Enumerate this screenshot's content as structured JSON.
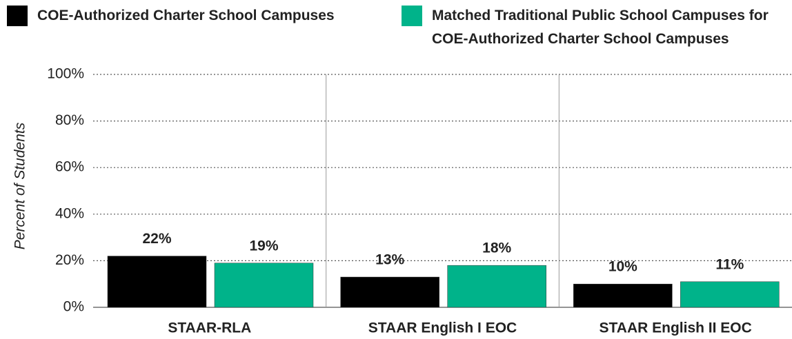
{
  "chart_data": {
    "type": "bar",
    "y_label": "Percent of Students",
    "categories": [
      "STAAR-RLA",
      "STAAR English I EOC",
      "STAAR English II EOC"
    ],
    "series": [
      {
        "name": "COE-Authorized Charter School Campuses",
        "color": "#000000",
        "values": [
          22,
          13,
          10
        ],
        "value_labels": [
          "22%",
          "13%",
          "10%"
        ]
      },
      {
        "name": "Matched Traditional Public School Campuses for COE-Authorized Charter School Campuses",
        "color": "#00b38a",
        "values": [
          19,
          18,
          11
        ],
        "value_labels": [
          "19%",
          "18%",
          "11%"
        ]
      }
    ],
    "ylim": [
      0,
      100
    ],
    "yticks": [
      {
        "value": 0,
        "label": "0%"
      },
      {
        "value": 20,
        "label": "20%"
      },
      {
        "value": 40,
        "label": "40%"
      },
      {
        "value": 60,
        "label": "60%"
      },
      {
        "value": 80,
        "label": "80%"
      },
      {
        "value": 100,
        "label": "100%"
      }
    ],
    "grid": true
  }
}
